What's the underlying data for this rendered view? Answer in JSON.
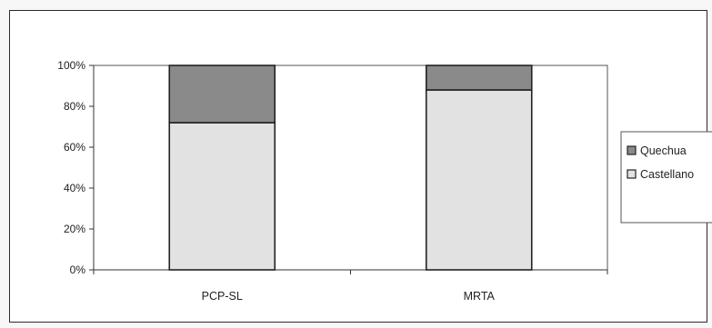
{
  "chart_data": {
    "type": "bar",
    "stacked": true,
    "percent": true,
    "categories": [
      "PCP-SL",
      "MRTA"
    ],
    "series": [
      {
        "name": "Castellano",
        "values": [
          72,
          88
        ],
        "color": "#e2e2e2"
      },
      {
        "name": "Quechua",
        "values": [
          28,
          12
        ],
        "color": "#8a8a8a"
      }
    ],
    "ylim": [
      0,
      100
    ],
    "yticks": [
      "0%",
      "20%",
      "40%",
      "60%",
      "80%",
      "100%"
    ],
    "title": "",
    "xlabel": "",
    "ylabel": "",
    "grid": false,
    "legend_position": "right",
    "legend_order": [
      "Quechua",
      "Castellano"
    ]
  }
}
